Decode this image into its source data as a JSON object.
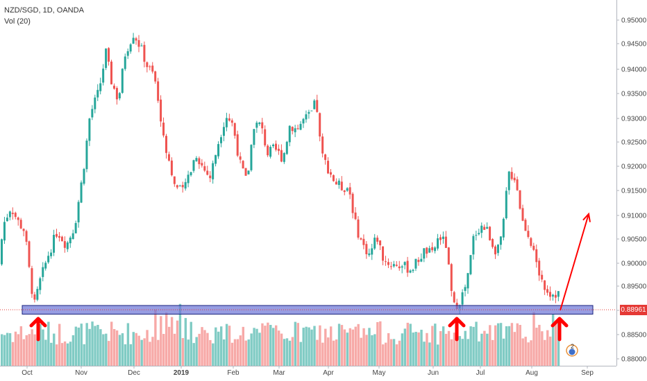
{
  "header": {
    "symbol_line": "NZD/SGD, 1D, OANDA",
    "volume_line": "Vol (20)"
  },
  "last_price_label": "0.88961",
  "badge_count": "2",
  "colors": {
    "up": "#26a69a",
    "down": "#ef5350",
    "up_volume": "#80cbc4",
    "down_volume": "#f7a9a7",
    "support_zone_fill": "#6b73d6",
    "arrow": "#ff0000",
    "price_line": "#e53935"
  },
  "chart_data": {
    "type": "candlestick",
    "title": "NZD/SGD, 1D, OANDA",
    "subtitle": "Vol (20)",
    "y_ticks": [
      "0.95000",
      "0.94500",
      "0.94000",
      "0.93500",
      "0.93000",
      "0.92500",
      "0.92000",
      "0.91500",
      "0.91000",
      "0.90500",
      "0.90000",
      "0.89500",
      "0.89000",
      "0.88500",
      "0.88000"
    ],
    "ylim": [
      0.879,
      0.951
    ],
    "x_ticks": [
      "Oct",
      "Nov",
      "Dec",
      "2019",
      "Feb",
      "Mar",
      "Apr",
      "May",
      "Jun",
      "Jul",
      "Aug",
      "Sep"
    ],
    "price_path_anchors": [
      [
        0,
        0.899
      ],
      [
        8,
        0.9075
      ],
      [
        18,
        0.911
      ],
      [
        28,
        0.908
      ],
      [
        38,
        0.906
      ],
      [
        46,
        0.896
      ],
      [
        52,
        0.8905
      ],
      [
        60,
        0.8955
      ],
      [
        72,
        0.901
      ],
      [
        85,
        0.906
      ],
      [
        98,
        0.903
      ],
      [
        110,
        0.907
      ],
      [
        122,
        0.918
      ],
      [
        132,
        0.93
      ],
      [
        145,
        0.935
      ],
      [
        155,
        0.943
      ],
      [
        163,
        0.937
      ],
      [
        173,
        0.933
      ],
      [
        183,
        0.943
      ],
      [
        195,
        0.947
      ],
      [
        205,
        0.944
      ],
      [
        215,
        0.94
      ],
      [
        225,
        0.938
      ],
      [
        235,
        0.928
      ],
      [
        245,
        0.921
      ],
      [
        255,
        0.915
      ],
      [
        265,
        0.914
      ],
      [
        275,
        0.918
      ],
      [
        285,
        0.922
      ],
      [
        295,
        0.919
      ],
      [
        305,
        0.917
      ],
      [
        318,
        0.925
      ],
      [
        328,
        0.93
      ],
      [
        338,
        0.928
      ],
      [
        348,
        0.92
      ],
      [
        358,
        0.916
      ],
      [
        368,
        0.928
      ],
      [
        378,
        0.928
      ],
      [
        388,
        0.922
      ],
      [
        398,
        0.923
      ],
      [
        410,
        0.921
      ],
      [
        420,
        0.928
      ],
      [
        430,
        0.927
      ],
      [
        440,
        0.929
      ],
      [
        450,
        0.93
      ],
      [
        458,
        0.933
      ],
      [
        465,
        0.922
      ],
      [
        475,
        0.919
      ],
      [
        485,
        0.916
      ],
      [
        495,
        0.915
      ],
      [
        505,
        0.915
      ],
      [
        515,
        0.907
      ],
      [
        525,
        0.903
      ],
      [
        535,
        0.901
      ],
      [
        545,
        0.905
      ],
      [
        555,
        0.9
      ],
      [
        565,
        0.899
      ],
      [
        575,
        0.899
      ],
      [
        585,
        0.8985
      ],
      [
        595,
        0.898
      ],
      [
        605,
        0.9
      ],
      [
        615,
        0.902
      ],
      [
        625,
        0.901
      ],
      [
        635,
        0.905
      ],
      [
        645,
        0.903
      ],
      [
        655,
        0.89
      ],
      [
        665,
        0.8915
      ],
      [
        675,
        0.895
      ],
      [
        685,
        0.905
      ],
      [
        695,
        0.907
      ],
      [
        705,
        0.906
      ],
      [
        715,
        0.902
      ],
      [
        725,
        0.904
      ],
      [
        735,
        0.918
      ],
      [
        745,
        0.917
      ],
      [
        755,
        0.908
      ],
      [
        765,
        0.905
      ],
      [
        775,
        0.899
      ],
      [
        785,
        0.895
      ],
      [
        795,
        0.893
      ],
      [
        805,
        0.893
      ]
    ],
    "support_zone": {
      "low": 0.8887,
      "high": 0.8905
    },
    "last_price": 0.88961,
    "annotations": {
      "up_arrows_at_x": [
        55,
        658,
        806
      ],
      "projection_arrow": {
        "from": [
          807,
          0.8895
        ],
        "to": [
          848,
          0.9095
        ]
      }
    },
    "grid": false,
    "legend": "top-left",
    "volume_panel": true
  }
}
